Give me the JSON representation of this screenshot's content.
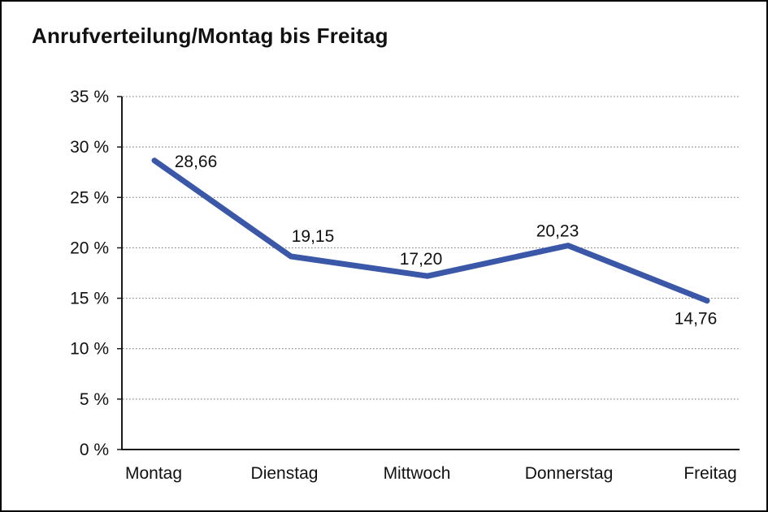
{
  "window": {
    "background_color": "#ffffff",
    "border_color": "#000000"
  },
  "chart_data": {
    "type": "line",
    "title": "Anrufverteilung/Montag bis Freitag",
    "categories": [
      "Montag",
      "Dienstag",
      "Mittwoch",
      "Donnerstag",
      "Freitag"
    ],
    "series": [
      {
        "name": "Anrufverteilung",
        "values": [
          28.66,
          19.15,
          17.2,
          20.23,
          14.76
        ]
      }
    ],
    "point_labels": [
      "28,66",
      "19,15",
      "17,20",
      "20,23",
      "14,76"
    ],
    "xlabel": "",
    "ylabel": "",
    "ylim": [
      0,
      35
    ],
    "yticks": [
      {
        "value": 0,
        "label": "0 %"
      },
      {
        "value": 5,
        "label": "5 %"
      },
      {
        "value": 10,
        "label": "10 %"
      },
      {
        "value": 15,
        "label": "15 %"
      },
      {
        "value": 20,
        "label": "20 %"
      },
      {
        "value": 25,
        "label": "25 %"
      },
      {
        "value": 30,
        "label": "30 %"
      },
      {
        "value": 35,
        "label": "35 %"
      }
    ],
    "grid": "horizontal-dotted",
    "legend": "none",
    "line_color": "#3a57a8",
    "axis_color": "#1a1a1a",
    "grid_color": "#777777",
    "text_color": "#111111"
  }
}
